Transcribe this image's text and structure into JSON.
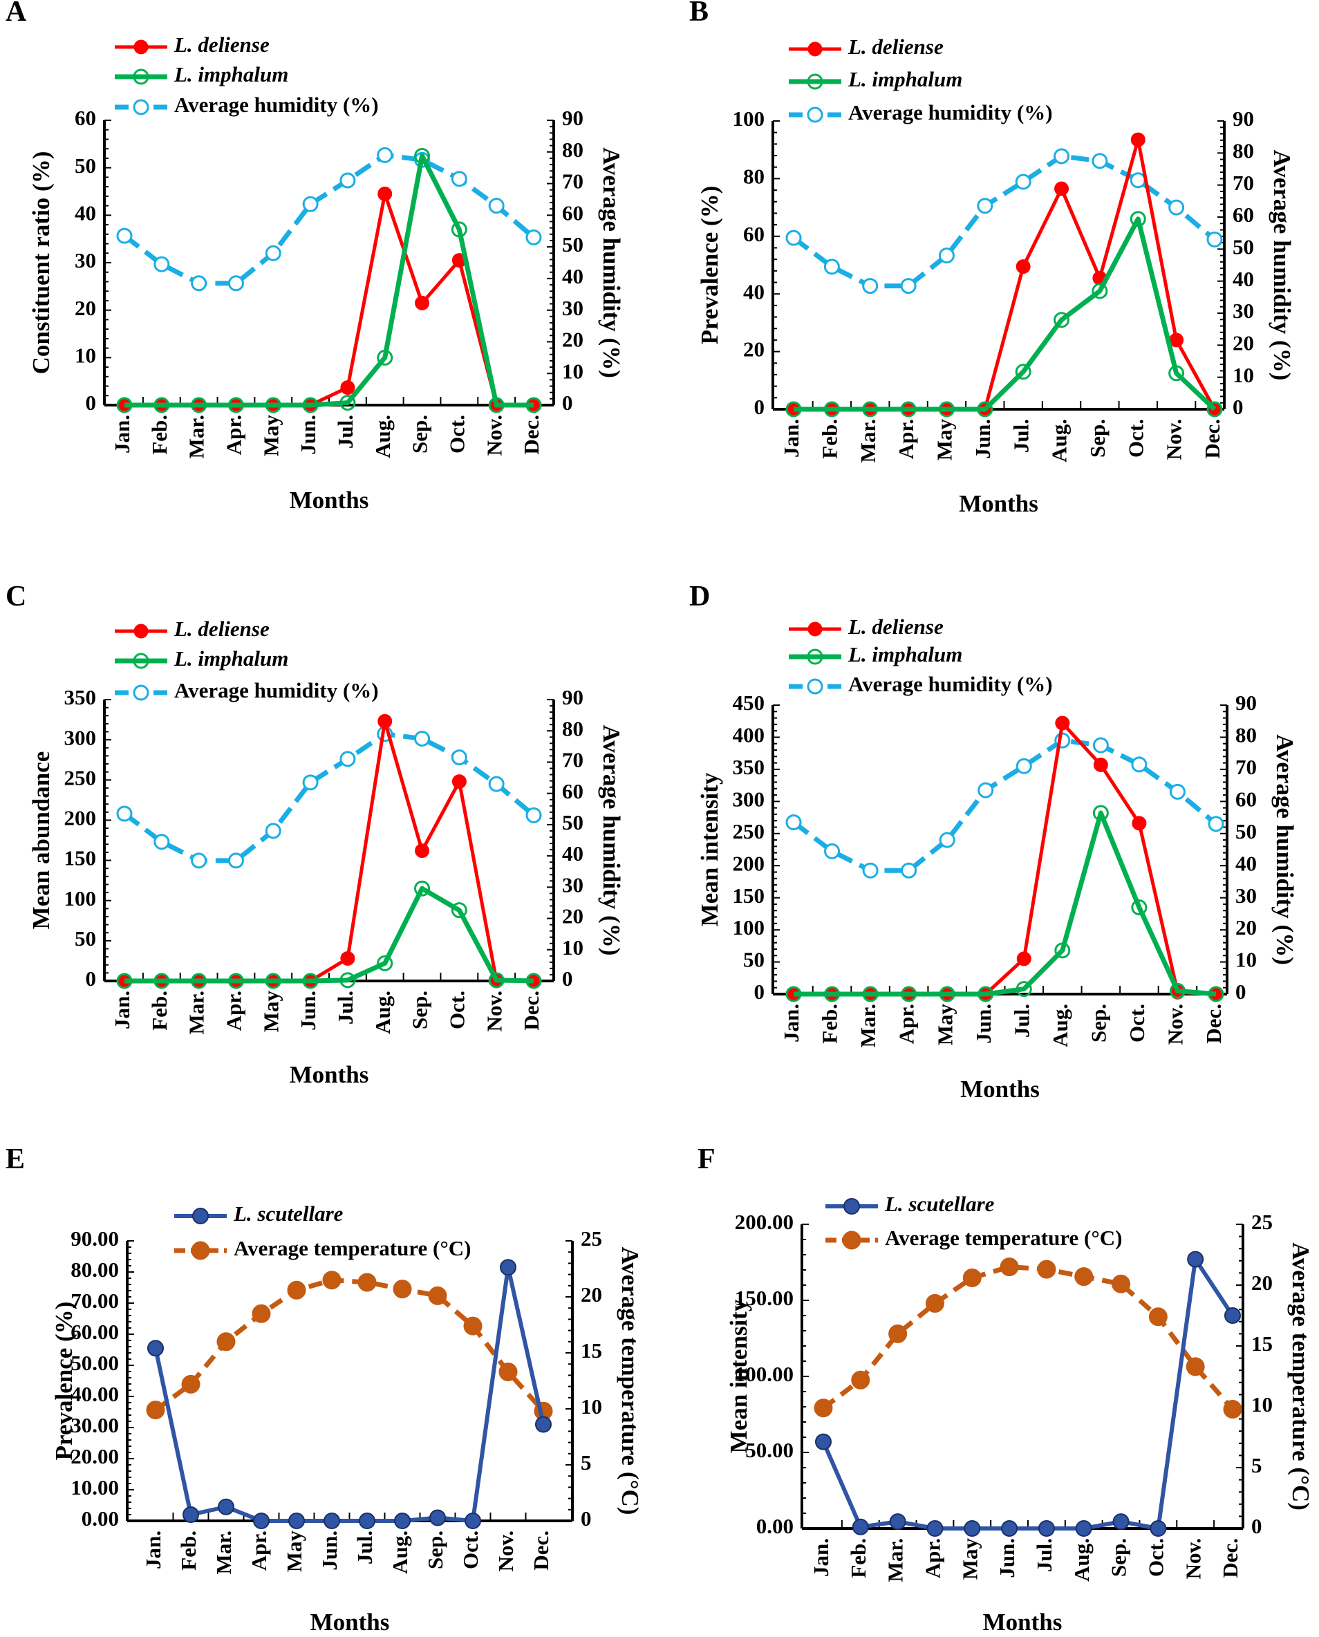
{
  "chart_data": [
    {
      "panel": "A",
      "type": "line",
      "categories": [
        "Jan.",
        "Feb.",
        "Mar.",
        "Apr.",
        "May",
        "Jun.",
        "Jul.",
        "Aug.",
        "Sep.",
        "Oct.",
        "Nov.",
        "Dec."
      ],
      "xlabel": "Months",
      "ylabel": "Constituent ratio (%)",
      "y2label": "Average humidity (%)",
      "ylim": [
        0,
        60
      ],
      "yticks": [
        "0",
        "10",
        "20",
        "30",
        "40",
        "50",
        "60"
      ],
      "y2lim": [
        0,
        90
      ],
      "y2ticks": [
        "0",
        "10",
        "20",
        "30",
        "40",
        "50",
        "60",
        "70",
        "80",
        "90"
      ],
      "series": [
        {
          "name": "Average humidity (%)",
          "axis": "right",
          "style": "humidity",
          "color": "#1AAEE5",
          "values": [
            53.5,
            44.5,
            38.5,
            38.5,
            48,
            63.5,
            71,
            79,
            77.5,
            71.5,
            63,
            53
          ]
        },
        {
          "name": "L. deliense",
          "axis": "left",
          "style": "red",
          "color": "#FF0000",
          "values": [
            0,
            0,
            0,
            0,
            0,
            0,
            3.7,
            44.5,
            21.5,
            30.5,
            0,
            0
          ]
        },
        {
          "name": "L. imphalum",
          "axis": "left",
          "style": "green",
          "color": "#00B050",
          "values": [
            0,
            0,
            0,
            0,
            0,
            0,
            0.5,
            10,
            52.5,
            37,
            0,
            0
          ]
        }
      ],
      "legend": [
        "L. deliense",
        "L. imphalum",
        "Average humidity (%)"
      ]
    },
    {
      "panel": "B",
      "type": "line",
      "categories": [
        "Jan.",
        "Feb.",
        "Mar.",
        "Apr.",
        "May",
        "Jun.",
        "Jul.",
        "Aug.",
        "Sep.",
        "Oct.",
        "Nov.",
        "Dec."
      ],
      "xlabel": "Months",
      "ylabel": "Prevalence (%)",
      "y2label": "Average humidity (%)",
      "ylim": [
        0,
        100
      ],
      "yticks": [
        "0",
        "20",
        "40",
        "60",
        "80",
        "100"
      ],
      "y2lim": [
        0,
        90
      ],
      "y2ticks": [
        "0",
        "10",
        "20",
        "30",
        "40",
        "50",
        "60",
        "70",
        "80",
        "90"
      ],
      "series": [
        {
          "name": "Average humidity (%)",
          "axis": "right",
          "style": "humidity",
          "color": "#1AAEE5",
          "values": [
            53.5,
            44.5,
            38.5,
            38.5,
            48,
            63.5,
            71,
            79,
            77.5,
            71.5,
            63,
            53
          ]
        },
        {
          "name": "L. deliense",
          "axis": "left",
          "style": "red",
          "color": "#FF0000",
          "values": [
            0,
            0,
            0,
            0,
            0,
            0,
            49.5,
            76.5,
            45.5,
            93.5,
            24,
            0
          ]
        },
        {
          "name": "L. imphalum",
          "axis": "left",
          "style": "green",
          "color": "#00B050",
          "values": [
            0,
            0,
            0,
            0,
            0,
            0,
            13,
            31,
            41,
            66,
            12.5,
            0
          ]
        }
      ],
      "legend": [
        "L. deliense",
        "L. imphalum",
        "Average humidity (%)"
      ]
    },
    {
      "panel": "C",
      "type": "line",
      "categories": [
        "Jan.",
        "Feb.",
        "Mar.",
        "Apr.",
        "May",
        "Jun.",
        "Jul.",
        "Aug.",
        "Sep.",
        "Oct.",
        "Nov.",
        "Dec."
      ],
      "xlabel": "Months",
      "ylabel": "Mean abundance",
      "y2label": "Average humidity (%)",
      "ylim": [
        0,
        350
      ],
      "yticks": [
        "0",
        "50",
        "100",
        "150",
        "200",
        "250",
        "300",
        "350"
      ],
      "y2lim": [
        0,
        90
      ],
      "y2ticks": [
        "0",
        "10",
        "20",
        "30",
        "40",
        "50",
        "60",
        "70",
        "80",
        "90"
      ],
      "series": [
        {
          "name": "Average humidity (%)",
          "axis": "right",
          "style": "humidity",
          "color": "#1AAEE5",
          "values": [
            53.5,
            44.5,
            38.5,
            38.5,
            48,
            63.5,
            71,
            79,
            77.5,
            71.5,
            63,
            53
          ]
        },
        {
          "name": "L. deliense",
          "axis": "left",
          "style": "red",
          "color": "#FF0000",
          "values": [
            0,
            0,
            0,
            0,
            0,
            0,
            28,
            323,
            162,
            248,
            0,
            0
          ]
        },
        {
          "name": "L. imphalum",
          "axis": "left",
          "style": "green",
          "color": "#00B050",
          "values": [
            0,
            0,
            0,
            0,
            0,
            0,
            1,
            22,
            115,
            88,
            1,
            0
          ]
        }
      ],
      "legend": [
        "L. deliense",
        "L. imphalum",
        "Average humidity (%)"
      ]
    },
    {
      "panel": "D",
      "type": "line",
      "categories": [
        "Jan.",
        "Feb.",
        "Mar.",
        "Apr.",
        "May",
        "Jun.",
        "Jul.",
        "Aug.",
        "Sep.",
        "Oct.",
        "Nov.",
        "Dec."
      ],
      "xlabel": "Months",
      "ylabel": "Mean intensity",
      "y2label": "Average humidity (%)",
      "ylim": [
        0,
        450
      ],
      "yticks": [
        "0",
        "50",
        "100",
        "150",
        "200",
        "250",
        "300",
        "350",
        "400",
        "450"
      ],
      "y2lim": [
        0,
        90
      ],
      "y2ticks": [
        "0",
        "10",
        "20",
        "30",
        "40",
        "50",
        "60",
        "70",
        "80",
        "90"
      ],
      "series": [
        {
          "name": "Average humidity (%)",
          "axis": "right",
          "style": "humidity",
          "color": "#1AAEE5",
          "values": [
            53.5,
            44.5,
            38.5,
            38.5,
            48,
            63.5,
            71,
            79,
            77.5,
            71.5,
            63,
            53
          ]
        },
        {
          "name": "L. deliense",
          "axis": "left",
          "style": "red",
          "color": "#FF0000",
          "values": [
            0,
            0,
            0,
            0,
            0,
            0,
            55,
            422,
            357,
            266,
            3,
            0
          ]
        },
        {
          "name": "L. imphalum",
          "axis": "left",
          "style": "green",
          "color": "#00B050",
          "values": [
            0,
            0,
            0,
            0,
            0,
            0,
            8,
            68,
            282,
            135,
            5,
            0
          ]
        }
      ],
      "legend": [
        "L. deliense",
        "L. imphalum",
        "Average humidity (%)"
      ]
    },
    {
      "panel": "E",
      "type": "line",
      "categories": [
        "Jan.",
        "Feb.",
        "Mar.",
        "Apr.",
        "May",
        "Jun.",
        "Jul.",
        "Aug.",
        "Sep.",
        "Oct.",
        "Nov.",
        "Dec."
      ],
      "xlabel": "Months",
      "ylabel": "Prevalence (%)",
      "y2label": "Average temperature (°C)",
      "ylim": [
        0,
        90
      ],
      "yticks": [
        "0.00",
        "10.00",
        "20.00",
        "30.00",
        "40.00",
        "50.00",
        "60.00",
        "70.00",
        "80.00",
        "90.00"
      ],
      "y2lim": [
        0,
        25
      ],
      "y2ticks": [
        "0",
        "5",
        "10",
        "15",
        "20",
        "25"
      ],
      "series": [
        {
          "name": "Average temperature (°C)",
          "axis": "right",
          "style": "temp",
          "color": "#C55A11",
          "values": [
            9.9,
            12.2,
            16.0,
            18.5,
            20.6,
            21.5,
            21.3,
            20.7,
            20.1,
            17.4,
            13.3,
            9.8
          ]
        },
        {
          "name": "L. scutellare",
          "axis": "left",
          "style": "blue",
          "color": "#2F55A4",
          "values": [
            55.5,
            2,
            4.5,
            0,
            0,
            0,
            0,
            0,
            1,
            0,
            81.5,
            31
          ]
        }
      ],
      "legend": [
        "L. scutellare",
        "Average temperature (°C)"
      ]
    },
    {
      "panel": "F",
      "type": "line",
      "categories": [
        "Jan.",
        "Feb.",
        "Mar.",
        "Apr.",
        "May",
        "Jun.",
        "Jul.",
        "Aug.",
        "Sep.",
        "Oct.",
        "Nov.",
        "Dec."
      ],
      "xlabel": "Months",
      "ylabel": "Mean intensity",
      "y2label": "Average temperature (°C)",
      "ylim": [
        0,
        200
      ],
      "yticks": [
        "0.00",
        "50.00",
        "100.00",
        "150.00",
        "200.00"
      ],
      "y2lim": [
        0,
        25
      ],
      "y2ticks": [
        "0",
        "5",
        "10",
        "15",
        "20",
        "25"
      ],
      "series": [
        {
          "name": "Average temperature (°C)",
          "axis": "right",
          "style": "temp",
          "color": "#C55A11",
          "values": [
            9.9,
            12.2,
            16.0,
            18.5,
            20.6,
            21.5,
            21.3,
            20.7,
            20.1,
            17.4,
            13.3,
            9.8
          ]
        },
        {
          "name": "L. scutellare",
          "axis": "left",
          "style": "blue",
          "color": "#2F55A4",
          "values": [
            57,
            1,
            4.5,
            0,
            0,
            0,
            0,
            0,
            4.5,
            0,
            177,
            140
          ]
        }
      ],
      "legend": [
        "L. scutellare",
        "Average temperature (°C)"
      ]
    }
  ]
}
